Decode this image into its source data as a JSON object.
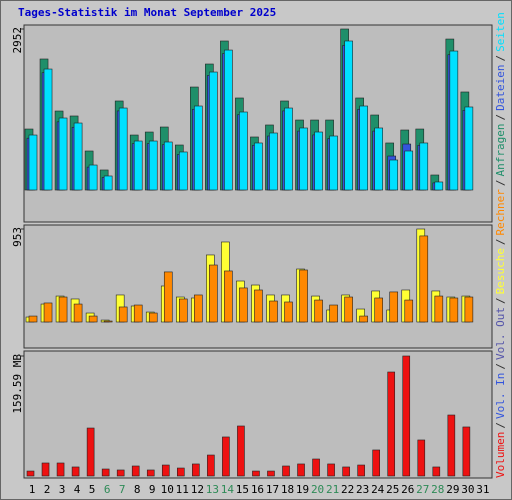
{
  "title": "Tages-Statistik im Monat September 2025",
  "separator": "/",
  "weekend_color": "#2e8b57",
  "weekends": [
    5,
    6,
    12,
    13,
    19,
    20,
    26,
    27
  ],
  "chart_data": [
    {
      "type": "bar",
      "ylim": [
        0,
        2952
      ],
      "yticks": [
        2952
      ],
      "series": [
        {
          "name": "Anfragen",
          "color": "#1f8f6a",
          "values": [
            1118,
            2402,
            1448,
            1357,
            715,
            367,
            1632,
            1008,
            1063,
            1155,
            825,
            1888,
            2310,
            2732,
            1687,
            972,
            1192,
            1632,
            1283,
            1283,
            1283,
            2952,
            1687,
            1375,
            862,
            1100,
            1118,
            275,
            2768,
            1797,
            null
          ]
        },
        {
          "name": "Dateien",
          "color": "#3355dd",
          "values": [
            950,
            2150,
            1250,
            1150,
            420,
            230,
            1450,
            850,
            850,
            830,
            650,
            1480,
            2100,
            2500,
            1380,
            820,
            990,
            1450,
            1080,
            1010,
            940,
            2650,
            1480,
            1080,
            623,
            843,
            820,
            130,
            2480,
            1460,
            null
          ]
        },
        {
          "name": "Seiten",
          "color": "#00e0ff",
          "values": [
            1008,
            2218,
            1320,
            1228,
            458,
            257,
            1503,
            898,
            898,
            880,
            697,
            1540,
            2163,
            2566,
            1430,
            862,
            1045,
            1503,
            1137,
            1063,
            990,
            2732,
            1540,
            1137,
            550,
            715,
            862,
            147,
            2548,
            1522,
            null
          ]
        }
      ]
    },
    {
      "type": "bar",
      "ylim": [
        0,
        953
      ],
      "yticks": [
        953
      ],
      "series": [
        {
          "name": "Besuche",
          "color": "#ffff33",
          "values": [
            51,
            184,
            266,
            236,
            92,
            20,
            277,
            164,
            102,
            369,
            256,
            246,
            687,
            820,
            420,
            379,
            277,
            277,
            543,
            266,
            123,
            277,
            133,
            318,
            123,
            328,
            953,
            318,
            256,
            266,
            null
          ]
        },
        {
          "name": "Rechner",
          "color": "#ff8800",
          "values": [
            61,
            195,
            256,
            184,
            61,
            10,
            154,
            174,
            92,
            513,
            236,
            277,
            584,
            523,
            349,
            328,
            215,
            205,
            533,
            225,
            174,
            256,
            61,
            246,
            308,
            225,
            882,
            266,
            246,
            256,
            null
          ]
        }
      ]
    },
    {
      "type": "bar",
      "ylim": [
        0,
        159.59
      ],
      "yticks": [
        {
          "value": 159.59,
          "label": "159.59 MB"
        }
      ],
      "categories": [
        "1",
        "2",
        "3",
        "4",
        "5",
        "6",
        "7",
        "8",
        "9",
        "10",
        "11",
        "12",
        "13",
        "14",
        "15",
        "16",
        "17",
        "18",
        "19",
        "20",
        "21",
        "22",
        "23",
        "24",
        "25",
        "26",
        "27",
        "28",
        "29",
        "30",
        "31"
      ],
      "series": [
        {
          "name": "Volumen",
          "color": "#ee1111",
          "values": [
            6.6,
            17.3,
            17.3,
            12,
            63.8,
            9.3,
            8,
            13.3,
            8,
            14.6,
            10.6,
            16,
            27.9,
            51.9,
            66.5,
            6.6,
            6.6,
            13.3,
            16,
            22.6,
            16,
            12,
            14.6,
            34.6,
            138.3,
            159.59,
            47.9,
            12,
            81.1,
            65.2,
            null
          ]
        },
        {
          "name": "Vol. In",
          "color": "#3355dd",
          "values": [
            null,
            null,
            null,
            null,
            null,
            null,
            null,
            null,
            null,
            null,
            null,
            null,
            null,
            null,
            null,
            null,
            null,
            null,
            null,
            null,
            null,
            null,
            null,
            null,
            null,
            null,
            null,
            null,
            null,
            null,
            null
          ]
        },
        {
          "name": "Vol. Out",
          "color": "#5555aa",
          "values": [
            null,
            null,
            null,
            null,
            null,
            null,
            null,
            null,
            null,
            null,
            null,
            null,
            null,
            null,
            null,
            null,
            null,
            null,
            null,
            null,
            null,
            null,
            null,
            null,
            null,
            null,
            null,
            null,
            null,
            null,
            null
          ]
        }
      ]
    }
  ]
}
